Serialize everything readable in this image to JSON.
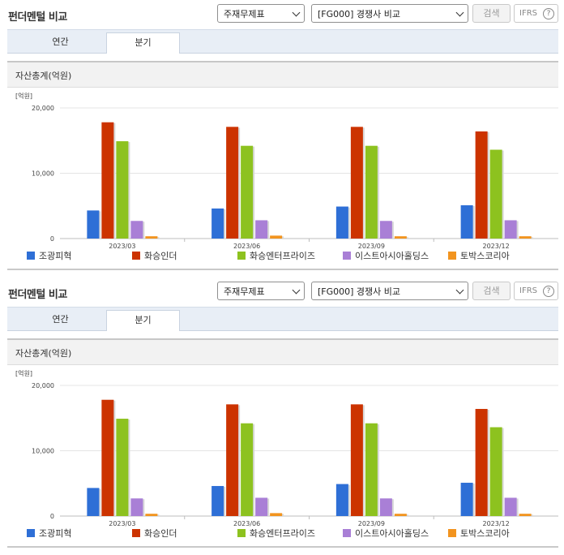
{
  "sections": [
    {
      "title": "펀더멘털 비교",
      "select_report": "주재무제표",
      "select_compare": "[FG000] 경쟁사 비교",
      "search_btn": "검색",
      "ifrs_label": "IFRS",
      "help": "?",
      "tab_annual": "연간",
      "tab_quarter": "분기",
      "metric_title": "자산총계(억원)",
      "unit_label": "[억원]"
    },
    {
      "title": "펀더멘털 비교",
      "select_report": "주재무제표",
      "select_compare": "[FG000] 경쟁사 비교",
      "search_btn": "검색",
      "ifrs_label": "IFRS",
      "help": "?",
      "tab_annual": "연간",
      "tab_quarter": "분기",
      "metric_title": "자산총계(억원)",
      "unit_label": "[억원]"
    }
  ],
  "chart_data": [
    {
      "type": "bar",
      "title": "자산총계(억원)",
      "ylabel": "[억원]",
      "ylim": [
        0,
        20000
      ],
      "yticks": [
        "0",
        "10,000",
        "20,000"
      ],
      "categories": [
        "2023/03",
        "2023/06",
        "2023/09",
        "2023/12"
      ],
      "series": [
        {
          "name": "조광피혁",
          "color": "#2e6fd6",
          "values": [
            4300,
            4600,
            4900,
            5100
          ]
        },
        {
          "name": "화승인더",
          "color": "#cc3300",
          "values": [
            17800,
            17100,
            17100,
            16400
          ]
        },
        {
          "name": "화승엔터프라이즈",
          "color": "#8dc21f",
          "values": [
            14900,
            14200,
            14200,
            13600
          ]
        },
        {
          "name": "이스트아시아홀딩스",
          "color": "#a97fd6",
          "values": [
            2700,
            2800,
            2700,
            2800
          ]
        },
        {
          "name": "토박스코리아",
          "color": "#f2941f",
          "values": [
            350,
            450,
            350,
            350
          ]
        }
      ],
      "grid": true,
      "legend_position": "bottom"
    },
    {
      "type": "bar",
      "title": "자산총계(억원)",
      "ylabel": "[억원]",
      "ylim": [
        0,
        20000
      ],
      "yticks": [
        "0",
        "10,000",
        "20,000"
      ],
      "categories": [
        "2023/03",
        "2023/06",
        "2023/09",
        "2023/12"
      ],
      "series": [
        {
          "name": "조광피혁",
          "color": "#2e6fd6",
          "values": [
            4300,
            4600,
            4900,
            5100
          ]
        },
        {
          "name": "화승인더",
          "color": "#cc3300",
          "values": [
            17800,
            17100,
            17100,
            16400
          ]
        },
        {
          "name": "화승엔터프라이즈",
          "color": "#8dc21f",
          "values": [
            14900,
            14200,
            14200,
            13600
          ]
        },
        {
          "name": "이스트아시아홀딩스",
          "color": "#a97fd6",
          "values": [
            2700,
            2800,
            2700,
            2800
          ]
        },
        {
          "name": "토박스코리아",
          "color": "#f2941f",
          "values": [
            350,
            450,
            350,
            350
          ]
        }
      ],
      "grid": true,
      "legend_position": "bottom"
    }
  ]
}
